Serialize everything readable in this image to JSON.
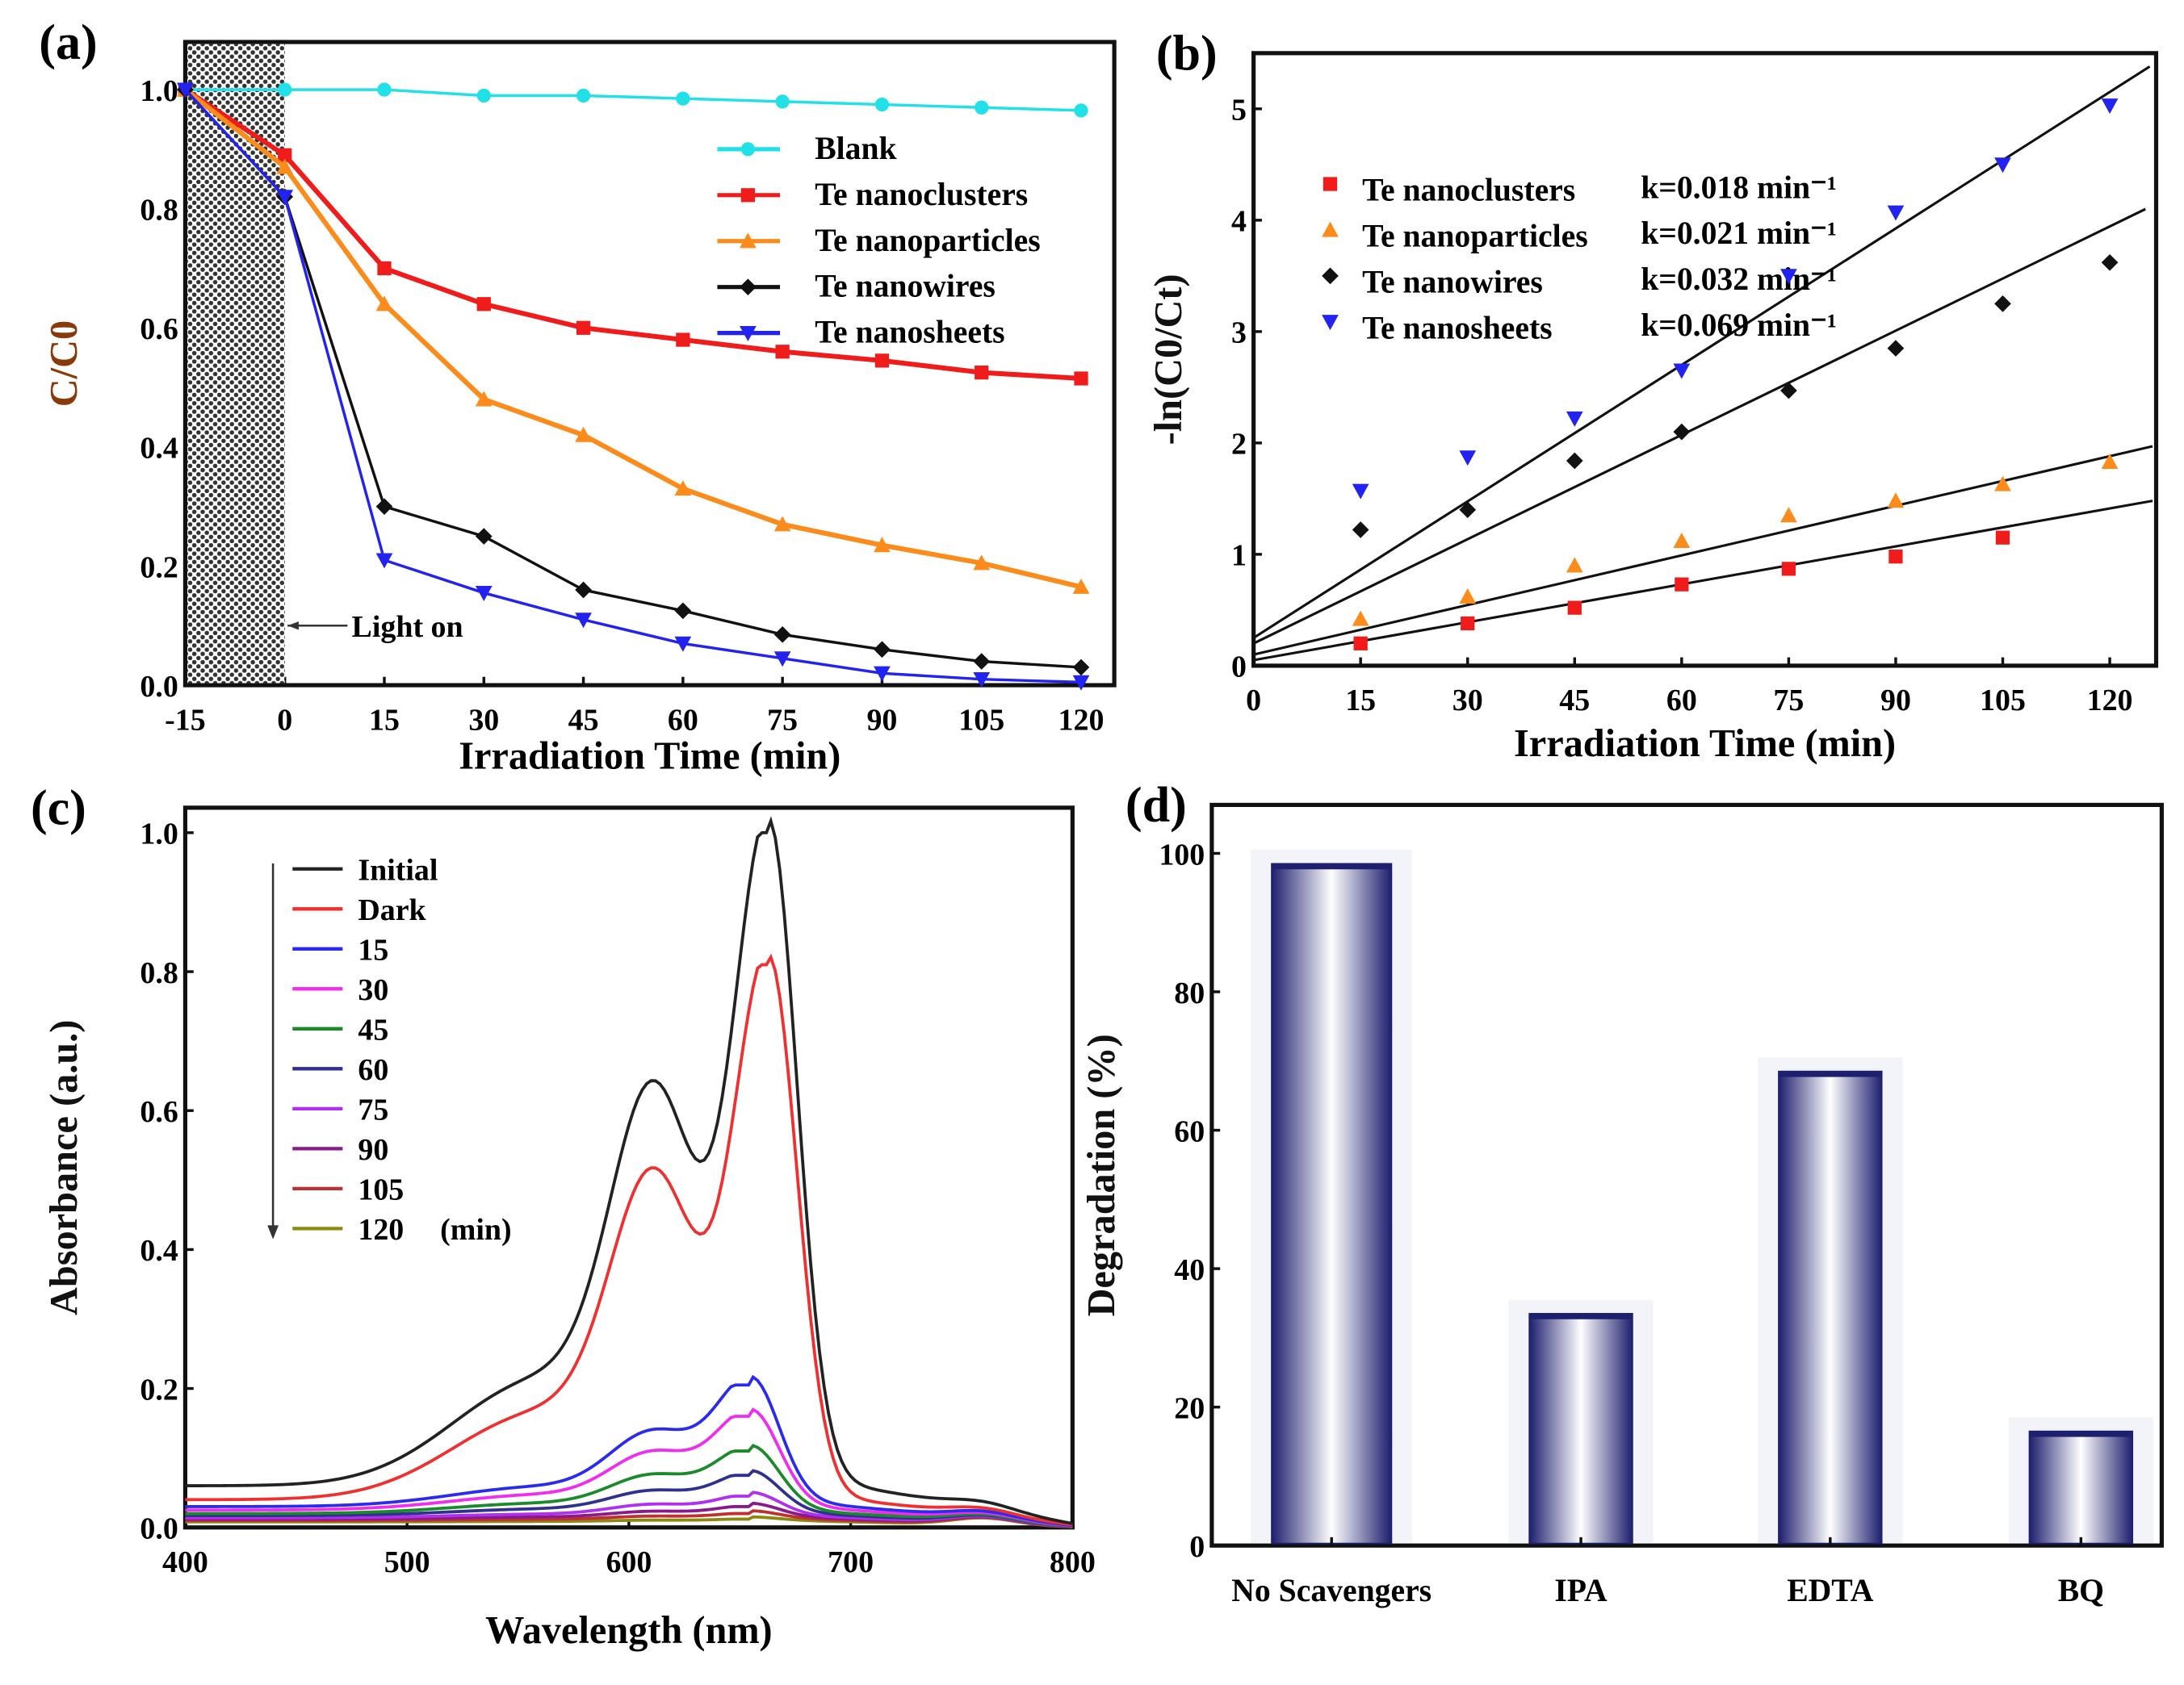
{
  "chart_data": [
    {
      "panel": "(a)",
      "type": "line",
      "xlabel": "Irradiation Time (min)",
      "ylabel": "C/C0",
      "xlim": [
        -15,
        125
      ],
      "ylim": [
        0,
        1.08
      ],
      "xticks": [
        -15,
        0,
        15,
        30,
        45,
        60,
        75,
        90,
        105,
        120
      ],
      "yticks": [
        "0.0",
        "0.2",
        "0.4",
        "0.6",
        "0.8",
        "1.0"
      ],
      "annotation": "Light on",
      "dark_region": [
        -15,
        0
      ],
      "x": [
        -15,
        0,
        15,
        30,
        45,
        60,
        75,
        90,
        105,
        120
      ],
      "legend_position": "top-right",
      "series": [
        {
          "name": "Blank",
          "color": "#22e0e8",
          "marker": "circle",
          "values": [
            1.0,
            1.0,
            1.0,
            0.99,
            0.99,
            0.985,
            0.98,
            0.975,
            0.97,
            0.965
          ]
        },
        {
          "name": "Te nanoclusters",
          "color": "#f01c1c",
          "marker": "square",
          "values": [
            1.0,
            0.89,
            0.7,
            0.64,
            0.6,
            0.58,
            0.56,
            0.545,
            0.525,
            0.515
          ]
        },
        {
          "name": "Te nanoparticles",
          "color": "#fb8c1c",
          "marker": "triangle-up",
          "values": [
            1.0,
            0.87,
            0.64,
            0.48,
            0.42,
            0.33,
            0.27,
            0.235,
            0.205,
            0.165
          ]
        },
        {
          "name": "Te nanowires",
          "color": "#111111",
          "marker": "diamond",
          "values": [
            1.0,
            0.82,
            0.3,
            0.25,
            0.16,
            0.125,
            0.085,
            0.06,
            0.04,
            0.03
          ]
        },
        {
          "name": "Te nanosheets",
          "color": "#2323f0",
          "marker": "triangle-down",
          "values": [
            1.0,
            0.82,
            0.21,
            0.155,
            0.11,
            0.07,
            0.045,
            0.02,
            0.01,
            0.005
          ]
        }
      ]
    },
    {
      "panel": "(b)",
      "type": "scatter",
      "xlabel": "Irradiation Time (min)",
      "ylabel": "-ln(C0/Ct)",
      "xlim": [
        0,
        126.5
      ],
      "ylim": [
        0,
        5.5
      ],
      "xticks": [
        0,
        15,
        30,
        45,
        60,
        75,
        90,
        105,
        120
      ],
      "yticks": [
        0,
        1,
        2,
        3,
        4,
        5
      ],
      "legend_position": "top-left",
      "series": [
        {
          "name": "Te nanoclusters",
          "k_label": "k=0.018 min⁻¹",
          "color": "#f01c1c",
          "marker": "square",
          "x": [
            15,
            30,
            45,
            60,
            75,
            90,
            105
          ],
          "values": [
            0.2,
            0.38,
            0.52,
            0.73,
            0.87,
            0.98,
            1.15
          ],
          "fit": [
            [
              0,
              0.05
            ],
            [
              126,
              1.48
            ]
          ]
        },
        {
          "name": "Te nanoparticles",
          "k_label": "k=0.021 min⁻¹",
          "color": "#fb8c1c",
          "marker": "triangle-up",
          "x": [
            15,
            30,
            45,
            60,
            75,
            90,
            105,
            120
          ],
          "values": [
            0.42,
            0.62,
            0.9,
            1.12,
            1.35,
            1.48,
            1.63,
            1.83
          ],
          "fit": [
            [
              0,
              0.1
            ],
            [
              126,
              1.97
            ]
          ]
        },
        {
          "name": "Te nanowires",
          "k_label": "k=0.032 min⁻¹",
          "color": "#111111",
          "marker": "diamond",
          "x": [
            15,
            30,
            45,
            60,
            75,
            90,
            105,
            120
          ],
          "values": [
            1.22,
            1.4,
            1.84,
            2.1,
            2.47,
            2.85,
            3.25,
            3.62
          ],
          "fit": [
            [
              0,
              0.2
            ],
            [
              125,
              4.1
            ]
          ]
        },
        {
          "name": "Te nanosheets",
          "k_label": "k=0.069 min⁻¹",
          "color": "#2323f0",
          "marker": "triangle-down",
          "x": [
            15,
            30,
            45,
            60,
            75,
            90,
            105,
            120
          ],
          "values": [
            1.57,
            1.87,
            2.22,
            2.65,
            3.5,
            4.07,
            4.5,
            5.03
          ],
          "fit": [
            [
              0,
              0.25
            ],
            [
              125.6,
              5.38
            ]
          ]
        }
      ]
    },
    {
      "panel": "(c)",
      "type": "line",
      "xlabel": "Wavelength (nm)",
      "ylabel": "Absorbance (a.u.)",
      "xlim": [
        400,
        800
      ],
      "ylim": [
        0,
        1.036
      ],
      "xticks": [
        400,
        500,
        600,
        700,
        800
      ],
      "yticks": [
        "0.0",
        "0.2",
        "0.4",
        "0.6",
        "0.8",
        "1.0"
      ],
      "legend_unit": "(min)",
      "legend_position": "top-left",
      "series": [
        {
          "name": "Initial",
          "color": "#222222",
          "peak_nm": 663,
          "peak": 1.0,
          "baseline": 0.06
        },
        {
          "name": "Dark",
          "color": "#f03030",
          "peak_nm": 663,
          "peak": 0.81,
          "baseline": 0.04
        },
        {
          "name": "15",
          "color": "#2b2bf0",
          "peak_nm": 655,
          "peak": 0.205,
          "baseline": 0.03
        },
        {
          "name": "30",
          "color": "#f02cf0",
          "peak_nm": 655,
          "peak": 0.16,
          "baseline": 0.025
        },
        {
          "name": "45",
          "color": "#1a8a2a",
          "peak_nm": 655,
          "peak": 0.11,
          "baseline": 0.02
        },
        {
          "name": "60",
          "color": "#30308f",
          "peak_nm": 655,
          "peak": 0.075,
          "baseline": 0.017
        },
        {
          "name": "75",
          "color": "#b030f0",
          "peak_nm": 655,
          "peak": 0.045,
          "baseline": 0.014
        },
        {
          "name": "90",
          "color": "#8a1a8a",
          "peak_nm": 655,
          "peak": 0.03,
          "baseline": 0.012
        },
        {
          "name": "105",
          "color": "#c03030",
          "peak_nm": 655,
          "peak": 0.02,
          "baseline": 0.01
        },
        {
          "name": "120",
          "color": "#8a8a10",
          "peak_nm": 655,
          "peak": 0.012,
          "baseline": 0.008
        }
      ]
    },
    {
      "panel": "(d)",
      "type": "bar",
      "xlabel": "",
      "ylabel": "Degradation (%)",
      "ylim": [
        0,
        107
      ],
      "yticks": [
        0,
        20,
        40,
        60,
        80,
        100
      ],
      "categories": [
        "No Scavengers",
        "IPA",
        "EDTA",
        "BQ"
      ],
      "values": [
        98.5,
        33.5,
        68.5,
        16.5
      ],
      "bar_color": "#1e1f6e"
    }
  ]
}
